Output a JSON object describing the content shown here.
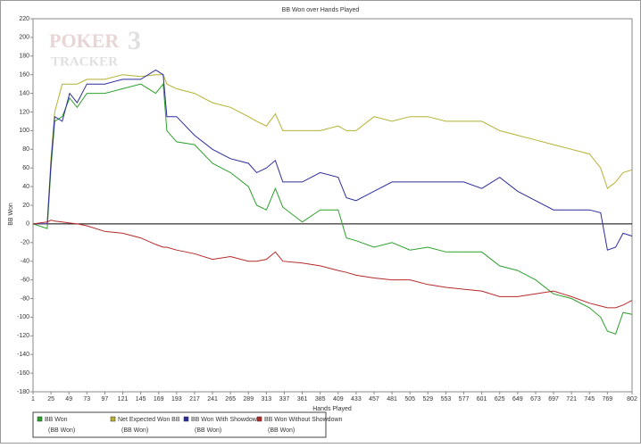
{
  "chart_data": {
    "type": "line",
    "title": "BB Won over Hands Played",
    "x_label": "Hands Played",
    "y_label": "BB Won",
    "watermark": [
      "POKER",
      "TRACKER",
      "3"
    ],
    "legend_unit": "(BB Won)",
    "legend_position": "bottom-left",
    "zero_line": true,
    "xlim": [
      1,
      802
    ],
    "xticks": [
      1,
      25,
      49,
      73,
      97,
      121,
      145,
      169,
      193,
      217,
      241,
      265,
      289,
      313,
      337,
      361,
      385,
      409,
      433,
      457,
      481,
      505,
      529,
      553,
      577,
      601,
      625,
      649,
      673,
      697,
      721,
      745,
      769,
      802
    ],
    "ylim": [
      -180,
      220
    ],
    "yticks": [
      -180,
      -160,
      -140,
      -120,
      -100,
      -80,
      -60,
      -40,
      -20,
      0,
      20,
      40,
      60,
      80,
      100,
      120,
      140,
      160,
      180,
      200,
      220
    ],
    "x": [
      1,
      20,
      25,
      30,
      40,
      50,
      60,
      73,
      97,
      121,
      145,
      165,
      175,
      180,
      193,
      217,
      241,
      265,
      289,
      300,
      313,
      325,
      335,
      361,
      385,
      409,
      420,
      433,
      457,
      481,
      505,
      529,
      553,
      577,
      601,
      625,
      649,
      673,
      697,
      721,
      745,
      760,
      769,
      780,
      790,
      802
    ],
    "series": [
      {
        "name": "BB Won",
        "color": "#2ca02c",
        "values": [
          0,
          -5,
          60,
          110,
          115,
          135,
          125,
          140,
          140,
          145,
          150,
          140,
          150,
          100,
          88,
          85,
          65,
          55,
          40,
          20,
          15,
          38,
          18,
          2,
          15,
          15,
          -15,
          -18,
          -25,
          -20,
          -28,
          -25,
          -30,
          -30,
          -30,
          -45,
          -50,
          -60,
          -75,
          -80,
          -90,
          -100,
          -115,
          -118,
          -95,
          -97
        ]
      },
      {
        "name": "Net Expected Won BB",
        "color": "#b5b032",
        "values": [
          0,
          0,
          70,
          120,
          150,
          150,
          150,
          155,
          155,
          160,
          158,
          160,
          160,
          150,
          145,
          140,
          130,
          125,
          115,
          110,
          105,
          118,
          100,
          100,
          100,
          105,
          100,
          100,
          115,
          110,
          115,
          115,
          110,
          110,
          110,
          100,
          95,
          90,
          85,
          80,
          75,
          60,
          38,
          45,
          55,
          58
        ]
      },
      {
        "name": "BB Won With Showdown",
        "color": "#2c2c9c",
        "values": [
          0,
          0,
          65,
          115,
          110,
          140,
          130,
          150,
          150,
          155,
          155,
          165,
          160,
          115,
          115,
          95,
          80,
          70,
          65,
          55,
          60,
          68,
          45,
          45,
          55,
          50,
          28,
          25,
          35,
          45,
          45,
          45,
          45,
          45,
          38,
          50,
          35,
          25,
          15,
          15,
          15,
          12,
          -28,
          -25,
          -10,
          -13
        ]
      },
      {
        "name": "BB Won Without Showdown",
        "color": "#b52a2a",
        "values": [
          0,
          2,
          4,
          3,
          2,
          1,
          0,
          -2,
          -8,
          -10,
          -15,
          -22,
          -25,
          -25,
          -28,
          -32,
          -38,
          -35,
          -40,
          -40,
          -38,
          -30,
          -40,
          -42,
          -45,
          -50,
          -52,
          -55,
          -58,
          -60,
          -60,
          -65,
          -68,
          -70,
          -72,
          -78,
          -78,
          -75,
          -72,
          -78,
          -85,
          -88,
          -90,
          -90,
          -87,
          -82
        ]
      }
    ]
  }
}
